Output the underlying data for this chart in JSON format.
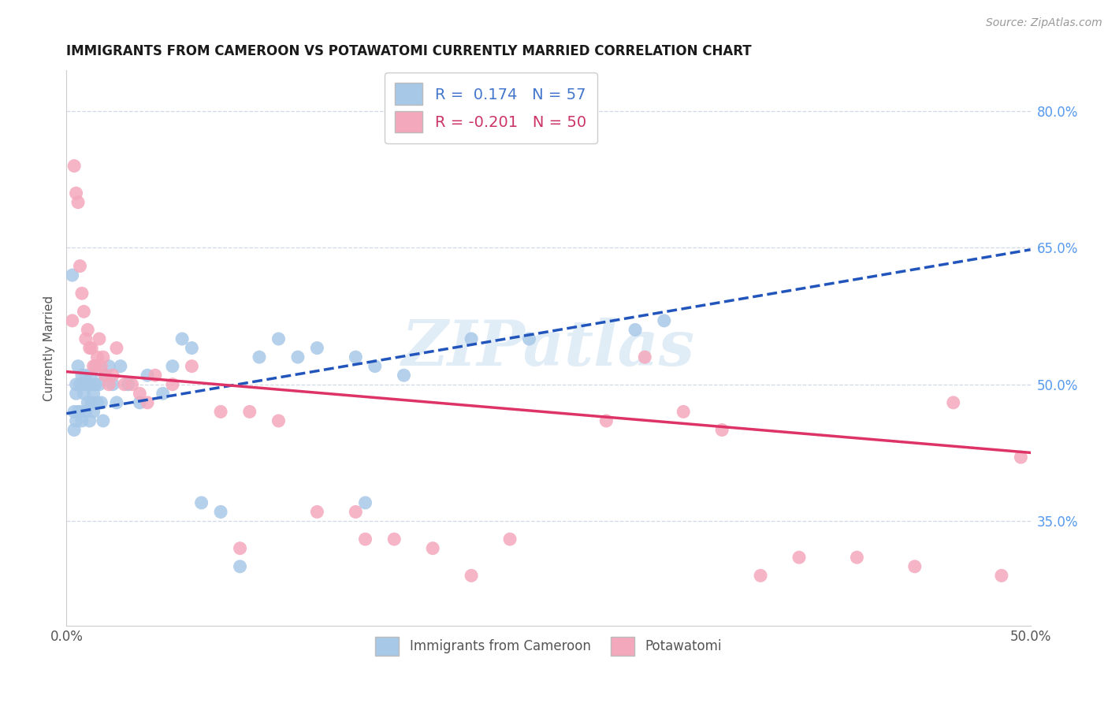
{
  "title": "IMMIGRANTS FROM CAMEROON VS POTAWATOMI CURRENTLY MARRIED CORRELATION CHART",
  "source": "Source: ZipAtlas.com",
  "ylabel": "Currently Married",
  "xmin": 0.0,
  "xmax": 0.5,
  "ymin": 0.235,
  "ymax": 0.845,
  "yticks": [
    0.35,
    0.5,
    0.65,
    0.8
  ],
  "ytick_labels": [
    "35.0%",
    "50.0%",
    "65.0%",
    "80.0%"
  ],
  "xticks": [
    0.0,
    0.1,
    0.2,
    0.3,
    0.4,
    0.5
  ],
  "xtick_labels": [
    "0.0%",
    "",
    "",
    "",
    "",
    "50.0%"
  ],
  "blue_color": "#a8c8e8",
  "pink_color": "#f4a8bc",
  "blue_line_color": "#2255bb",
  "pink_line_color": "#dd3366",
  "watermark_text": "ZIPatlas",
  "blue_x": [
    0.003,
    0.004,
    0.004,
    0.005,
    0.005,
    0.005,
    0.006,
    0.006,
    0.007,
    0.007,
    0.008,
    0.008,
    0.009,
    0.009,
    0.01,
    0.01,
    0.011,
    0.011,
    0.012,
    0.012,
    0.013,
    0.013,
    0.014,
    0.014,
    0.015,
    0.015,
    0.016,
    0.017,
    0.018,
    0.019,
    0.02,
    0.022,
    0.024,
    0.026,
    0.028,
    0.032,
    0.038,
    0.042,
    0.05,
    0.055,
    0.06,
    0.065,
    0.07,
    0.08,
    0.09,
    0.1,
    0.11,
    0.12,
    0.13,
    0.15,
    0.155,
    0.16,
    0.175,
    0.21,
    0.24,
    0.31,
    0.295
  ],
  "blue_y": [
    0.62,
    0.47,
    0.45,
    0.5,
    0.49,
    0.46,
    0.52,
    0.47,
    0.5,
    0.47,
    0.51,
    0.46,
    0.5,
    0.49,
    0.51,
    0.47,
    0.5,
    0.48,
    0.5,
    0.46,
    0.51,
    0.48,
    0.49,
    0.47,
    0.5,
    0.52,
    0.48,
    0.5,
    0.48,
    0.46,
    0.51,
    0.52,
    0.5,
    0.48,
    0.52,
    0.5,
    0.48,
    0.51,
    0.49,
    0.52,
    0.55,
    0.54,
    0.37,
    0.36,
    0.3,
    0.53,
    0.55,
    0.53,
    0.54,
    0.53,
    0.37,
    0.52,
    0.51,
    0.55,
    0.55,
    0.57,
    0.56
  ],
  "pink_x": [
    0.003,
    0.004,
    0.005,
    0.006,
    0.007,
    0.008,
    0.009,
    0.01,
    0.011,
    0.012,
    0.013,
    0.014,
    0.015,
    0.016,
    0.017,
    0.018,
    0.019,
    0.02,
    0.022,
    0.024,
    0.026,
    0.03,
    0.034,
    0.038,
    0.042,
    0.046,
    0.055,
    0.065,
    0.08,
    0.095,
    0.11,
    0.13,
    0.15,
    0.17,
    0.19,
    0.21,
    0.23,
    0.28,
    0.32,
    0.34,
    0.36,
    0.38,
    0.41,
    0.44,
    0.46,
    0.485,
    0.495,
    0.3,
    0.155,
    0.09
  ],
  "pink_y": [
    0.57,
    0.74,
    0.71,
    0.7,
    0.63,
    0.6,
    0.58,
    0.55,
    0.56,
    0.54,
    0.54,
    0.52,
    0.52,
    0.53,
    0.55,
    0.52,
    0.53,
    0.51,
    0.5,
    0.51,
    0.54,
    0.5,
    0.5,
    0.49,
    0.48,
    0.51,
    0.5,
    0.52,
    0.47,
    0.47,
    0.46,
    0.36,
    0.36,
    0.33,
    0.32,
    0.29,
    0.33,
    0.46,
    0.47,
    0.45,
    0.29,
    0.31,
    0.31,
    0.3,
    0.48,
    0.29,
    0.42,
    0.53,
    0.33,
    0.32
  ],
  "legend1_label": "R =  0.174   N = 57",
  "legend2_label": "R = -0.201   N = 50",
  "bottom_label1": "Immigrants from Cameroon",
  "bottom_label2": "Potawatomi",
  "grid_color": "#d0d8e8",
  "blue_trend_x0": 0.0,
  "blue_trend_x1": 0.5,
  "blue_trend_y0": 0.468,
  "blue_trend_y1": 0.648,
  "pink_trend_x0": 0.0,
  "pink_trend_x1": 0.5,
  "pink_trend_y0": 0.514,
  "pink_trend_y1": 0.425
}
